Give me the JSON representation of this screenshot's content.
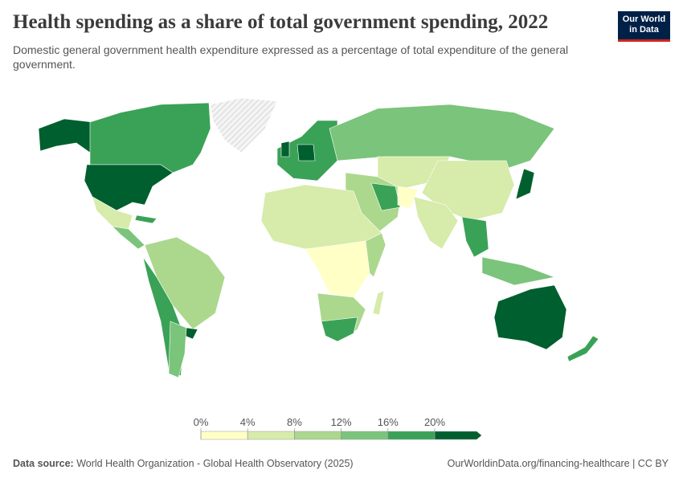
{
  "header": {
    "title": "Health spending as a share of total government spending, 2022",
    "subtitle": "Domestic general government health expenditure expressed as a percentage of total expenditure of the general government.",
    "logo": [
      "Our World",
      "in Data"
    ]
  },
  "legend": {
    "ticks": [
      {
        "value": 0,
        "label": "0%"
      },
      {
        "value": 4,
        "label": "4%"
      },
      {
        "value": 8,
        "label": "8%"
      },
      {
        "value": 12,
        "label": "12%"
      },
      {
        "value": 16,
        "label": "16%"
      },
      {
        "value": 20,
        "label": "20%"
      }
    ],
    "colors": [
      "#ffffc6",
      "#d7ebaa",
      "#acd88e",
      "#7bc47b",
      "#3aa256",
      "#005f2e"
    ]
  },
  "footer": {
    "source_label": "Data source:",
    "source": "World Health Organization - Global Health Observatory (2025)",
    "url": "OurWorldinData.org/financing-healthcare | CC BY"
  }
}
